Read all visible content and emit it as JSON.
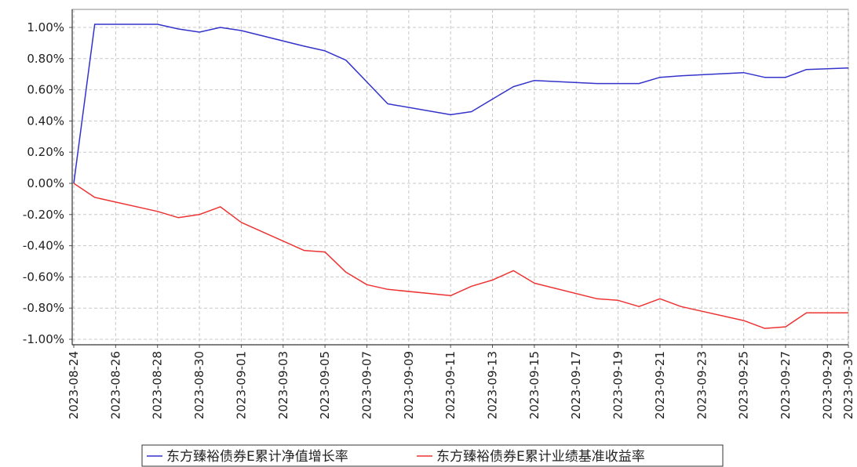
{
  "chart_data": {
    "type": "line",
    "title": "",
    "xlabel": "",
    "ylabel": "",
    "ylim": [
      -1.0,
      1.0
    ],
    "y_ticks": [
      "1.00%",
      "0.80%",
      "0.60%",
      "0.40%",
      "0.20%",
      "0.00%",
      "-0.20%",
      "-0.40%",
      "-0.60%",
      "-0.80%",
      "-1.00%"
    ],
    "x_tick_labels": [
      "2023-08-24",
      "2023-08-26",
      "2023-08-28",
      "2023-08-30",
      "2023-09-01",
      "2023-09-03",
      "2023-09-05",
      "2023-09-07",
      "2023-09-09",
      "2023-09-11",
      "2023-09-13",
      "2023-09-15",
      "2023-09-17",
      "2023-09-19",
      "2023-09-21",
      "2023-09-23",
      "2023-09-25",
      "2023-09-27",
      "2023-09-29",
      "2023-09-30"
    ],
    "x": [
      "2023-08-24",
      "2023-08-25",
      "2023-08-28",
      "2023-08-29",
      "2023-08-30",
      "2023-08-31",
      "2023-09-01",
      "2023-09-04",
      "2023-09-05",
      "2023-09-06",
      "2023-09-07",
      "2023-09-08",
      "2023-09-11",
      "2023-09-12",
      "2023-09-13",
      "2023-09-14",
      "2023-09-15",
      "2023-09-18",
      "2023-09-19",
      "2023-09-20",
      "2023-09-21",
      "2023-09-22",
      "2023-09-25",
      "2023-09-26",
      "2023-09-27",
      "2023-09-28",
      "2023-09-30"
    ],
    "grid": true,
    "legend_position": "bottom",
    "series": [
      {
        "name": "东方臻裕债券E累计净值增长率",
        "color": "#3333cc",
        "values": [
          0.0,
          1.02,
          1.02,
          0.99,
          0.97,
          1.0,
          0.98,
          0.88,
          0.85,
          0.79,
          0.65,
          0.51,
          0.44,
          0.46,
          0.54,
          0.62,
          0.66,
          0.64,
          0.64,
          0.64,
          0.68,
          0.69,
          0.71,
          0.68,
          0.68,
          0.73,
          0.74
        ]
      },
      {
        "name": "东方臻裕债券E累计业绩基准收益率",
        "color": "#ee3333",
        "values": [
          0.0,
          -0.09,
          -0.18,
          -0.22,
          -0.2,
          -0.15,
          -0.25,
          -0.43,
          -0.44,
          -0.57,
          -0.65,
          -0.68,
          -0.72,
          -0.66,
          -0.62,
          -0.56,
          -0.64,
          -0.74,
          -0.75,
          -0.79,
          -0.74,
          -0.79,
          -0.88,
          -0.93,
          -0.92,
          -0.83,
          -0.83
        ]
      }
    ]
  }
}
